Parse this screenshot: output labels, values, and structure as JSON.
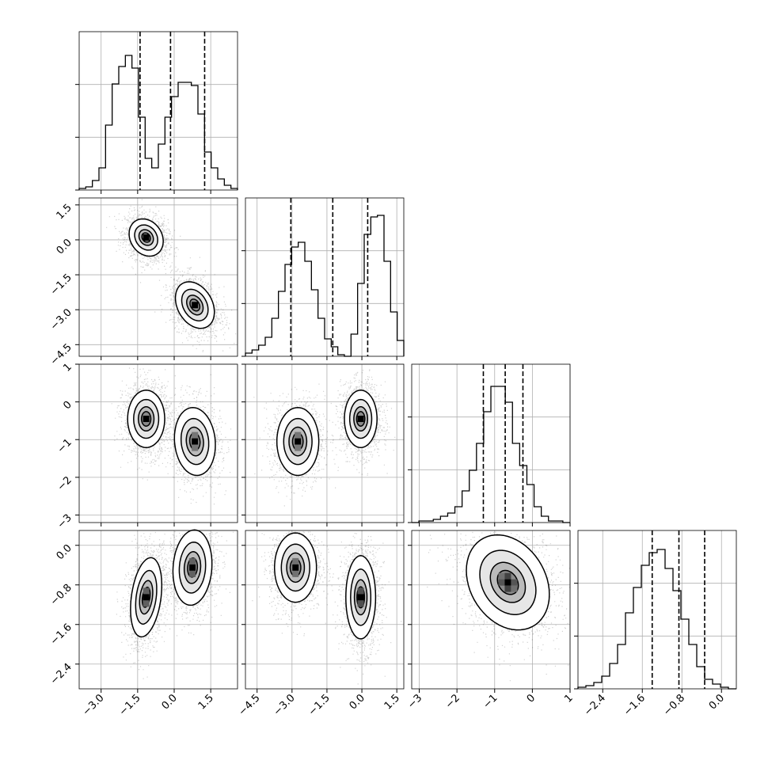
{
  "chart_data": {
    "type": "corner",
    "grid": true,
    "variables": [
      {
        "ticks": [
          -3.0,
          -1.5,
          0.0,
          1.5
        ],
        "tick_labels": [
          "−3.0",
          "−1.5",
          "0.0",
          "1.5"
        ],
        "range": [
          -3.9,
          2.6
        ],
        "hist": [
          0.01,
          0.02,
          0.06,
          0.14,
          0.41,
          0.67,
          0.78,
          0.85,
          0.77,
          0.46,
          0.2,
          0.14,
          0.29,
          0.46,
          0.59,
          0.68,
          0.68,
          0.66,
          0.48,
          0.24,
          0.14,
          0.07,
          0.03,
          0.01
        ],
        "quantiles": [
          -1.4,
          -0.15,
          1.25
        ]
      },
      {
        "ticks": [
          -4.5,
          -3.0,
          -1.5,
          0.0,
          1.5
        ],
        "tick_labels": [
          "−4.5",
          "−3.0",
          "−1.5",
          "0.0",
          "1.5"
        ],
        "range": [
          -5.0,
          1.8
        ],
        "hist": [
          0.02,
          0.04,
          0.07,
          0.12,
          0.24,
          0.41,
          0.58,
          0.69,
          0.72,
          0.6,
          0.42,
          0.24,
          0.11,
          0.06,
          0.01,
          0.0,
          0.14,
          0.46,
          0.77,
          0.88,
          0.89,
          0.6,
          0.28,
          0.1
        ],
        "quantiles": [
          -3.05,
          -1.25,
          0.25
        ]
      },
      {
        "ticks": [
          -3,
          -2,
          -1,
          0,
          1
        ],
        "tick_labels": [
          "−3",
          "−2",
          "−1",
          "0",
          "1"
        ],
        "range": [
          -3.2,
          1.0
        ],
        "hist": [
          0.0,
          0.01,
          0.01,
          0.02,
          0.04,
          0.06,
          0.1,
          0.2,
          0.33,
          0.5,
          0.7,
          0.86,
          0.86,
          0.76,
          0.5,
          0.36,
          0.24,
          0.1,
          0.04,
          0.01,
          0.01,
          0.0
        ],
        "quantiles": [
          -1.3,
          -0.72,
          -0.25
        ]
      },
      {
        "ticks": [
          -2.4,
          -1.6,
          -0.8,
          0.0
        ],
        "tick_labels": [
          "−2.4",
          "−1.6",
          "−0.8",
          "0.0"
        ],
        "range": [
          -2.9,
          0.3
        ],
        "hist": [
          0.01,
          0.02,
          0.04,
          0.08,
          0.16,
          0.28,
          0.48,
          0.64,
          0.78,
          0.86,
          0.88,
          0.76,
          0.62,
          0.44,
          0.28,
          0.14,
          0.06,
          0.03,
          0.01,
          0.0
        ],
        "quantiles": [
          -1.4,
          -0.86,
          -0.34
        ]
      }
    ],
    "blobs": [
      {
        "row": 1,
        "col": 0,
        "components": [
          {
            "mx": -1.15,
            "my": 0.1,
            "sx": 0.35,
            "sy": 0.4,
            "rho": -0.2,
            "w": 1.0
          },
          {
            "mx": 0.85,
            "my": -2.8,
            "sx": 0.4,
            "sy": 0.5,
            "rho": -0.3,
            "w": 1.0
          }
        ]
      },
      {
        "row": 2,
        "col": 0,
        "components": [
          {
            "mx": -1.15,
            "my": -0.45,
            "sx": 0.38,
            "sy": 0.38,
            "rho": 0.0,
            "w": 1.0
          },
          {
            "mx": 0.85,
            "my": -1.05,
            "sx": 0.42,
            "sy": 0.45,
            "rho": -0.1,
            "w": 0.8
          }
        ]
      },
      {
        "row": 2,
        "col": 1,
        "components": [
          {
            "mx": -2.75,
            "my": -1.05,
            "sx": 0.45,
            "sy": 0.45,
            "rho": 0.0,
            "w": 0.75
          },
          {
            "mx": -0.05,
            "my": -0.45,
            "sx": 0.35,
            "sy": 0.38,
            "rho": 0.0,
            "w": 1.0
          }
        ]
      },
      {
        "row": 3,
        "col": 0,
        "components": [
          {
            "mx": -1.15,
            "my": -1.05,
            "sx": 0.32,
            "sy": 0.4,
            "rho": 0.3,
            "w": 1.0
          },
          {
            "mx": 0.75,
            "my": -0.45,
            "sx": 0.4,
            "sy": 0.38,
            "rho": 0.1,
            "w": 0.9
          }
        ]
      },
      {
        "row": 3,
        "col": 1,
        "components": [
          {
            "mx": -2.85,
            "my": -0.45,
            "sx": 0.45,
            "sy": 0.35,
            "rho": 0.0,
            "w": 0.85
          },
          {
            "mx": -0.05,
            "my": -1.05,
            "sx": 0.32,
            "sy": 0.42,
            "rho": 0.0,
            "w": 1.0
          }
        ]
      },
      {
        "row": 3,
        "col": 2,
        "components": [
          {
            "mx": -0.65,
            "my": -0.75,
            "sx": 0.55,
            "sy": 0.48,
            "rho": -0.25,
            "w": 1.0
          }
        ]
      }
    ]
  }
}
